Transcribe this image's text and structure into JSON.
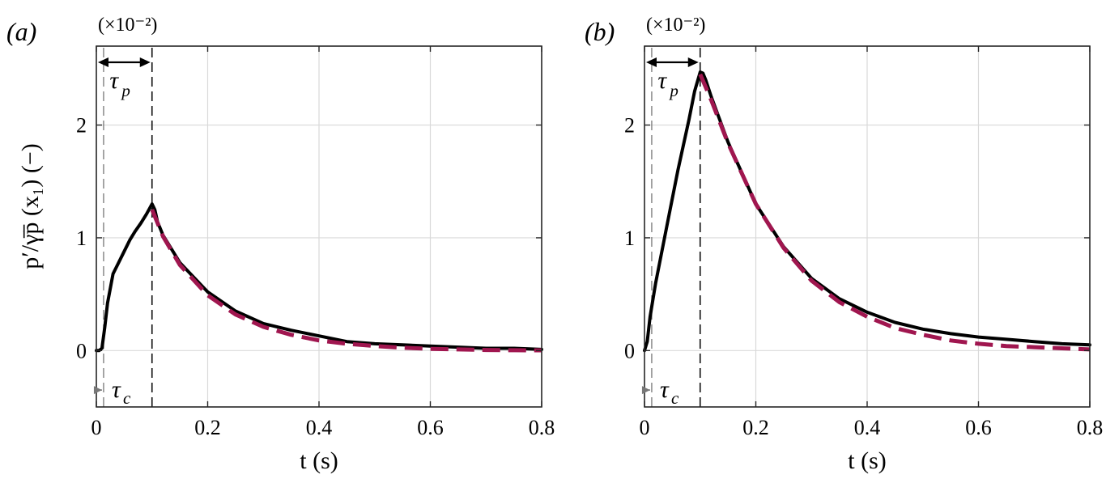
{
  "chart_data": [
    {
      "type": "line",
      "panel_label": "(a)",
      "scale_note": "(×10⁻²)",
      "xlabel": "t (s)",
      "ylabel": "p′/γ̄p̄ (x₁) (−)",
      "xlim": [
        0,
        0.8
      ],
      "ylim": [
        -0.5,
        2.7
      ],
      "xticks": [
        0,
        0.2,
        0.4,
        0.6,
        0.8
      ],
      "xtick_labels": [
        "0",
        "0.2",
        "0.4",
        "0.6",
        "0.8"
      ],
      "yticks": [
        0,
        1,
        2
      ],
      "ytick_labels": [
        "0",
        "1",
        "2"
      ],
      "grid": true,
      "annotations": {
        "tau_p": {
          "main": "τ",
          "sub": "p",
          "from": 0.0,
          "to": 0.1
        },
        "tau_c": {
          "main": "τ",
          "sub": "c",
          "at": 0.013
        },
        "dashed_verticals": [
          0.013,
          0.1
        ]
      },
      "series": [
        {
          "color": "#000000",
          "style": "solid",
          "x": [
            0,
            0.005,
            0.01,
            0.015,
            0.02,
            0.03,
            0.04,
            0.05,
            0.06,
            0.07,
            0.08,
            0.09,
            0.1,
            0.105,
            0.11,
            0.12,
            0.15,
            0.2,
            0.25,
            0.3,
            0.35,
            0.4,
            0.45,
            0.5,
            0.55,
            0.6,
            0.65,
            0.7,
            0.75,
            0.8
          ],
          "y": [
            0,
            0,
            0.02,
            0.2,
            0.42,
            0.68,
            0.78,
            0.88,
            0.98,
            1.06,
            1.13,
            1.21,
            1.3,
            1.25,
            1.14,
            1.02,
            0.78,
            0.52,
            0.35,
            0.24,
            0.18,
            0.13,
            0.08,
            0.06,
            0.05,
            0.04,
            0.03,
            0.02,
            0.02,
            0.01
          ]
        },
        {
          "color": "#a0164f",
          "style": "dashed",
          "x": [
            0.1,
            0.12,
            0.15,
            0.2,
            0.25,
            0.3,
            0.35,
            0.4,
            0.45,
            0.5,
            0.55,
            0.6,
            0.65,
            0.7,
            0.75,
            0.8
          ],
          "y": [
            1.25,
            1.01,
            0.76,
            0.49,
            0.32,
            0.21,
            0.14,
            0.09,
            0.06,
            0.04,
            0.025,
            0.015,
            0.01,
            0.005,
            0.003,
            0.002
          ]
        }
      ]
    },
    {
      "type": "line",
      "panel_label": "(b)",
      "scale_note": "(×10⁻²)",
      "xlabel": "t (s)",
      "ylabel": "",
      "xlim": [
        0,
        0.8
      ],
      "ylim": [
        -0.5,
        2.7
      ],
      "xticks": [
        0,
        0.2,
        0.4,
        0.6,
        0.8
      ],
      "xtick_labels": [
        "0",
        "0.2",
        "0.4",
        "0.6",
        "0.8"
      ],
      "yticks": [
        0,
        1,
        2
      ],
      "ytick_labels": [
        "0",
        "1",
        "2"
      ],
      "grid": true,
      "annotations": {
        "tau_p": {
          "main": "τ",
          "sub": "p",
          "from": 0.0,
          "to": 0.1
        },
        "tau_c": {
          "main": "τ",
          "sub": "c",
          "at": 0.013
        },
        "dashed_verticals": [
          0.013,
          0.1
        ]
      },
      "series": [
        {
          "color": "#000000",
          "style": "solid",
          "x": [
            0,
            0.005,
            0.01,
            0.02,
            0.04,
            0.06,
            0.08,
            0.09,
            0.1,
            0.105,
            0.11,
            0.12,
            0.15,
            0.2,
            0.25,
            0.3,
            0.35,
            0.4,
            0.45,
            0.5,
            0.55,
            0.6,
            0.65,
            0.7,
            0.75,
            0.8
          ],
          "y": [
            0,
            0.08,
            0.3,
            0.6,
            1.1,
            1.6,
            2.05,
            2.3,
            2.47,
            2.46,
            2.4,
            2.25,
            1.85,
            1.3,
            0.92,
            0.64,
            0.46,
            0.34,
            0.25,
            0.19,
            0.15,
            0.12,
            0.1,
            0.08,
            0.06,
            0.05
          ]
        },
        {
          "color": "#a0164f",
          "style": "dashed",
          "x": [
            0.1,
            0.12,
            0.15,
            0.2,
            0.25,
            0.3,
            0.35,
            0.4,
            0.45,
            0.5,
            0.55,
            0.6,
            0.65,
            0.7,
            0.75,
            0.8
          ],
          "y": [
            2.45,
            2.22,
            1.84,
            1.3,
            0.91,
            0.62,
            0.43,
            0.3,
            0.2,
            0.14,
            0.09,
            0.06,
            0.04,
            0.03,
            0.02,
            0.01
          ]
        }
      ]
    }
  ]
}
